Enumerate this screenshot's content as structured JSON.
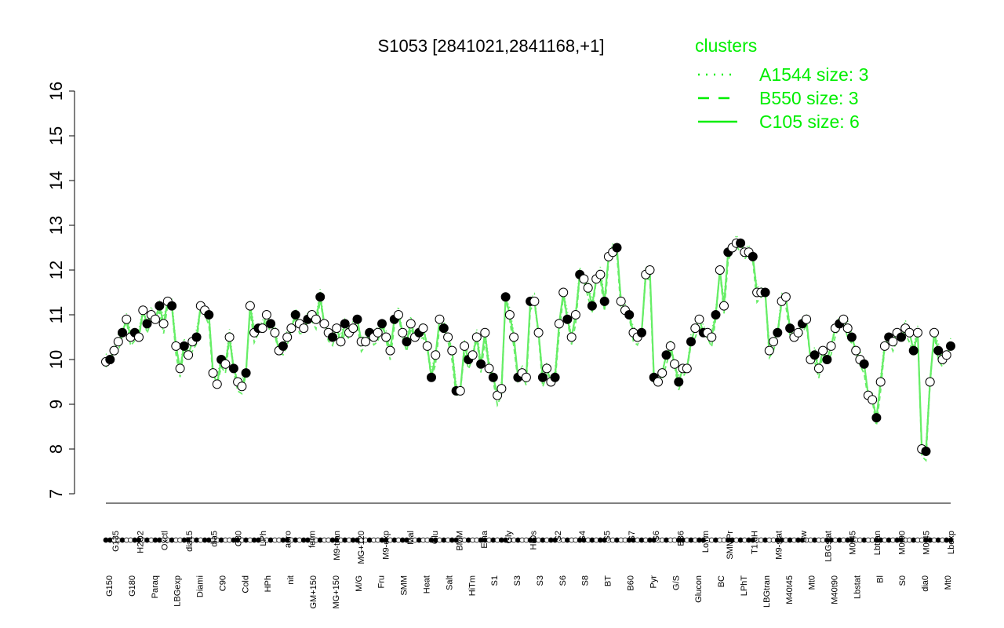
{
  "chart_data": {
    "type": "line",
    "title": "S1053 [2841021,2841168,+1]",
    "ylim": [
      7,
      16
    ],
    "yticks": [
      7,
      8,
      9,
      10,
      11,
      12,
      13,
      14,
      15,
      16
    ],
    "xlabels_bottom": [
      "G150",
      "G180",
      "Paraq",
      "LBGexp",
      "Diami",
      "C90",
      "Cold",
      "HPh",
      "nit",
      "GM+150",
      "MG+150",
      "M/G",
      "Fru",
      "SMM",
      "Heat",
      "Salt",
      "HiTm",
      "S1",
      "S3",
      "S3",
      "S6",
      "S8",
      "BT",
      "B60",
      "Pyr",
      "G/S",
      "Glucon",
      "BC",
      "LPhT",
      "LBGtran",
      "M40t45",
      "Mt0",
      "M40t90",
      "Lbstat",
      "Bl",
      "S0",
      "dia0",
      "Mt0"
    ],
    "xlabels_top": [
      "G135",
      "H2O2",
      "Oxctl",
      "dia15",
      "dia5",
      "C30",
      "LPh",
      "aero",
      "ferm",
      "M9-tran",
      "MG+120",
      "M9-exp",
      "Mal",
      "Glu",
      "BMM",
      "Etha",
      "Gly",
      "HiOs",
      "S2",
      "S4",
      "S5",
      "S7",
      "S6",
      "B36",
      "LoTm",
      "SMMPr",
      "T1.0H",
      "M9-stat",
      "Sw",
      "LBGstat",
      "M0t45",
      "Lbtran",
      "M0t90",
      "M0t45",
      "Lbexp"
    ],
    "series_y": [
      9.95,
      10.0,
      10.2,
      10.4,
      10.6,
      10.9,
      10.5,
      10.6,
      10.5,
      11.1,
      10.8,
      11.0,
      10.9,
      11.2,
      10.8,
      11.3,
      11.2,
      10.3,
      9.8,
      10.3,
      10.1,
      10.4,
      10.5,
      11.2,
      11.1,
      11.0,
      9.7,
      9.45,
      10.0,
      9.9,
      10.5,
      9.8,
      9.5,
      9.4,
      9.7,
      11.2,
      10.6,
      10.7,
      10.7,
      11.0,
      10.8,
      10.6,
      10.2,
      10.3,
      10.5,
      10.7,
      11.0,
      10.8,
      10.7,
      10.9,
      11.0,
      10.9,
      11.4,
      10.8,
      10.6,
      10.5,
      10.7,
      10.4,
      10.8,
      10.6,
      10.7,
      10.9,
      10.4,
      10.4,
      10.6,
      10.5,
      10.6,
      10.8,
      10.5,
      10.2,
      10.9,
      11.0,
      10.6,
      10.4,
      10.8,
      10.5,
      10.6,
      10.7,
      10.3,
      9.6,
      10.1,
      10.9,
      10.7,
      10.5,
      10.2,
      9.3,
      9.3,
      10.3,
      10.0,
      10.1,
      10.5,
      9.9,
      10.6,
      9.8,
      9.6,
      9.2,
      9.35,
      11.4,
      11.0,
      10.5,
      9.6,
      9.7,
      9.6,
      11.3,
      11.3,
      10.6,
      9.6,
      9.8,
      9.5,
      9.6,
      10.8,
      11.5,
      10.9,
      10.5,
      11.0,
      11.9,
      11.8,
      11.6,
      11.2,
      11.8,
      11.9,
      11.3,
      12.3,
      12.4,
      12.5,
      11.3,
      11.1,
      11.0,
      10.6,
      10.5,
      10.6,
      11.9,
      12.0,
      9.6,
      9.5,
      9.7,
      10.1,
      10.3,
      9.9,
      9.5,
      9.8,
      9.8,
      10.4,
      10.7,
      10.9,
      10.6,
      10.6,
      10.5,
      11.0,
      12.0,
      11.2,
      12.4,
      12.5,
      12.6,
      12.6,
      12.4,
      12.4,
      12.3,
      11.5,
      11.5,
      11.5,
      10.2,
      10.4,
      10.6,
      11.3,
      11.4,
      10.7,
      10.5,
      10.6,
      10.8,
      10.9,
      10.0,
      10.1,
      9.8,
      10.2,
      10.0,
      10.3,
      10.7,
      10.8,
      10.9,
      10.7,
      10.5,
      10.2,
      10.0,
      9.9,
      9.2,
      9.1,
      8.7,
      9.5,
      10.3,
      10.5,
      10.4,
      10.6,
      10.5,
      10.7,
      10.6,
      10.2,
      10.6,
      8.0,
      7.95,
      9.5,
      10.6,
      10.2,
      10.0,
      10.1,
      10.3
    ],
    "legend": {
      "title": "clusters",
      "position": "top-right",
      "entries": [
        {
          "label": "A1544 size: 3",
          "style": "dotted"
        },
        {
          "label": "B550 size: 3",
          "style": "dashed"
        },
        {
          "label": "C105 size: 6",
          "style": "solid"
        }
      ]
    },
    "colors": {
      "line": "#66ee66",
      "legend": "#00ee00",
      "point_fill": "#ffffff",
      "point_stroke": "#000000",
      "dark_point": "#000000"
    }
  }
}
